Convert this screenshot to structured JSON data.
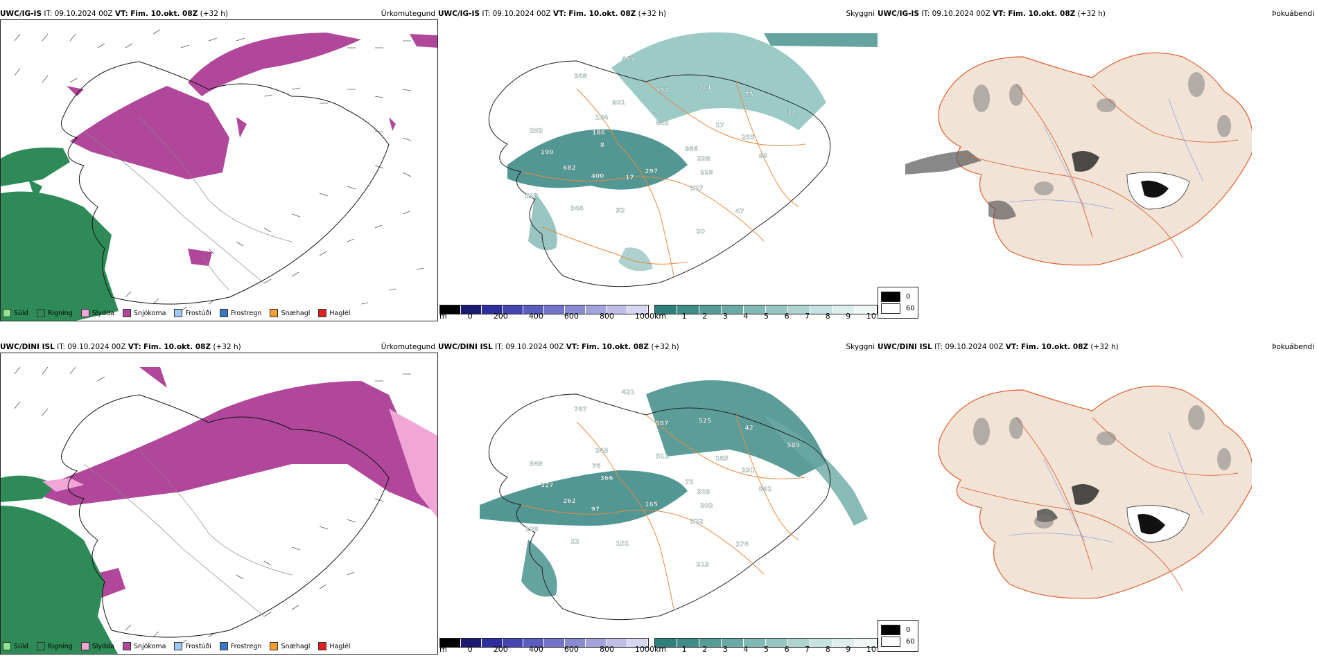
{
  "rows": [
    {
      "model": "UWC/IG-IS",
      "it_label": "IT:",
      "it_value": "09.10.2024 00Z",
      "vt_label": "VT:",
      "vt_value": "Fim. 10.okt. 08Z",
      "lead": "(+32 h)"
    },
    {
      "model": "UWC/DINI ISL",
      "it_label": "IT:",
      "it_value": "09.10.2024 00Z",
      "vt_label": "VT:",
      "vt_value": "Fim. 10.okt. 08Z",
      "lead": "(+32 h)"
    }
  ],
  "panel_titles": {
    "precip": "Úrkomutegund",
    "cloud": "Skyggni",
    "fog": "Þokuábendi"
  },
  "precip_legend": [
    {
      "label": "Súld",
      "color": "#8fe58f"
    },
    {
      "label": "Rigning",
      "color": "#2e8b57"
    },
    {
      "label": "Slydda",
      "color": "#f0a6d6"
    },
    {
      "label": "Snjókoma",
      "color": "#b0479b"
    },
    {
      "label": "Frostúði",
      "color": "#9ec9f0"
    },
    {
      "label": "Frostregn",
      "color": "#3b78c2"
    },
    {
      "label": "Snæhagl",
      "color": "#f0a030"
    },
    {
      "label": "Haglél",
      "color": "#e02020"
    }
  ],
  "ceiling_bar": {
    "unit": "m",
    "ticks": [
      "0",
      "200",
      "400",
      "600",
      "800",
      "1000"
    ],
    "colors": [
      "#000000",
      "#1a1a70",
      "#2e2e9c",
      "#4545b0",
      "#5c5cbf",
      "#7373c9",
      "#8a8ad2",
      "#a3a3dc",
      "#bdbde6",
      "#d6d6f0"
    ]
  },
  "vis_bar": {
    "unit": "km",
    "ticks": [
      "1",
      "2",
      "3",
      "4",
      "5",
      "6",
      "7",
      "8",
      "9",
      "10"
    ],
    "colors": [
      "#2f7f7a",
      "#3f8c87",
      "#559b96",
      "#6aa9a4",
      "#80b8b3",
      "#97c6c2",
      "#aed4d1",
      "#c5e2e0",
      "#dceeed",
      "#f0f8f7"
    ]
  },
  "fog_legend": [
    {
      "label": "0",
      "color": "#000000"
    },
    {
      "label": "60",
      "color": "#ffffff"
    }
  ],
  "cloud_labels_top": [
    "966",
    "400",
    "592",
    "47",
    "8",
    "17",
    "32",
    "248",
    "338",
    "682",
    "281",
    "20",
    "186",
    "255",
    "344",
    "465",
    "228",
    "190",
    "75",
    "297",
    "164",
    "93",
    "537",
    "842",
    "327",
    "259",
    "11",
    "17",
    "901"
  ],
  "cloud_labels_bottom": [
    "75",
    "97",
    "587",
    "176",
    "366",
    "183",
    "151",
    "767",
    "329",
    "262",
    "525",
    "213",
    "76",
    "331",
    "12",
    "421",
    "202",
    "327",
    "42",
    "165",
    "245",
    "592",
    "129",
    "511",
    "322",
    "348",
    "589"
  ]
}
